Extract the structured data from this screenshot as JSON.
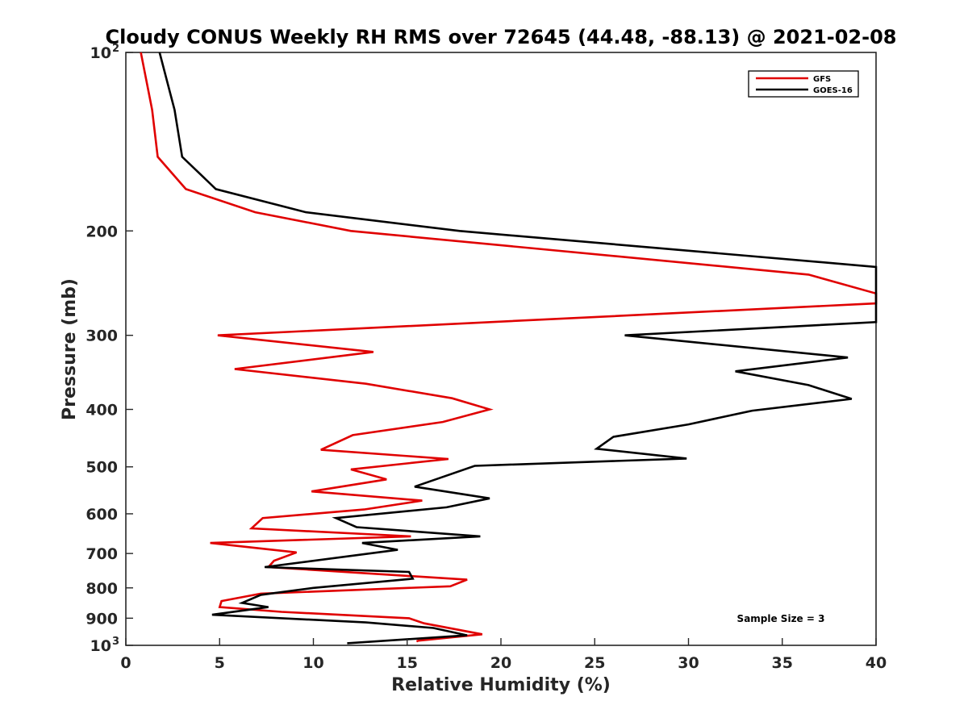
{
  "chart_data": {
    "type": "line",
    "title": "Cloudy CONUS Weekly RH RMS over 72645 (44.48, -88.13) @ 2021-02-08",
    "xlabel": "Relative Humidity (%)",
    "ylabel": "Pressure (mb)",
    "xlim": [
      0,
      40
    ],
    "ylim": [
      100,
      1000
    ],
    "y_scale": "log",
    "y_reversed": true,
    "x_ticks": [
      0,
      5,
      10,
      15,
      20,
      25,
      30,
      35,
      40
    ],
    "y_ticks": [
      {
        "value": 100,
        "label": "10",
        "sup": "2"
      },
      {
        "value": 200,
        "label": "200"
      },
      {
        "value": 300,
        "label": "300"
      },
      {
        "value": 400,
        "label": "400"
      },
      {
        "value": 500,
        "label": "500"
      },
      {
        "value": 600,
        "label": "600"
      },
      {
        "value": 700,
        "label": "700"
      },
      {
        "value": 800,
        "label": "800"
      },
      {
        "value": 900,
        "label": "900"
      },
      {
        "value": 1000,
        "label": "10",
        "sup": "3"
      }
    ],
    "grid": false,
    "legend_position": "top-right",
    "annotation": "Sample Size = 3",
    "series": [
      {
        "name": "GFS",
        "color": "#e00000",
        "points": [
          [
            0.8,
            100
          ],
          [
            1.4,
            125
          ],
          [
            1.7,
            150
          ],
          [
            3.2,
            170
          ],
          [
            6.9,
            186
          ],
          [
            12.0,
            200
          ],
          [
            36.4,
            237
          ],
          [
            40.0,
            255
          ],
          [
            40.0,
            265
          ],
          [
            4.9,
            300
          ],
          [
            13.2,
            320
          ],
          [
            5.8,
            342
          ],
          [
            12.8,
            362
          ],
          [
            17.4,
            383
          ],
          [
            19.4,
            400
          ],
          [
            16.9,
            420
          ],
          [
            12.1,
            442
          ],
          [
            10.4,
            468
          ],
          [
            17.2,
            485
          ],
          [
            12.0,
            505
          ],
          [
            13.9,
            525
          ],
          [
            9.9,
            550
          ],
          [
            15.8,
            570
          ],
          [
            12.7,
            590
          ],
          [
            7.3,
            610
          ],
          [
            6.7,
            635
          ],
          [
            15.2,
            655
          ],
          [
            4.5,
            672
          ],
          [
            9.1,
            697
          ],
          [
            7.9,
            720
          ],
          [
            7.6,
            738
          ],
          [
            18.2,
            775
          ],
          [
            17.3,
            795
          ],
          [
            7.2,
            818
          ],
          [
            5.1,
            842
          ],
          [
            5.0,
            862
          ],
          [
            8.3,
            878
          ],
          [
            15.1,
            900
          ],
          [
            15.9,
            918
          ],
          [
            19.0,
            958
          ],
          [
            15.6,
            982
          ],
          [
            15.5,
            985
          ]
        ]
      },
      {
        "name": "GOES-16",
        "color": "#000000",
        "points": [
          [
            1.8,
            100
          ],
          [
            2.6,
            125
          ],
          [
            3.0,
            150
          ],
          [
            4.8,
            170
          ],
          [
            9.6,
            186
          ],
          [
            17.8,
            200
          ],
          [
            40.0,
            230
          ],
          [
            40.0,
            285
          ],
          [
            26.6,
            300
          ],
          [
            38.5,
            327
          ],
          [
            32.5,
            345
          ],
          [
            36.4,
            364
          ],
          [
            38.7,
            384
          ],
          [
            33.4,
            402
          ],
          [
            30.0,
            424
          ],
          [
            26.0,
            445
          ],
          [
            25.1,
            466
          ],
          [
            29.9,
            484
          ],
          [
            18.6,
            498
          ],
          [
            15.4,
            540
          ],
          [
            19.4,
            565
          ],
          [
            17.1,
            585
          ],
          [
            11.2,
            610
          ],
          [
            12.3,
            632
          ],
          [
            18.9,
            655
          ],
          [
            12.6,
            672
          ],
          [
            14.5,
            690
          ],
          [
            7.4,
            738
          ],
          [
            15.1,
            752
          ],
          [
            15.3,
            772
          ],
          [
            10.0,
            800
          ],
          [
            7.2,
            822
          ],
          [
            6.2,
            848
          ],
          [
            7.6,
            862
          ],
          [
            4.6,
            888
          ],
          [
            12.8,
            915
          ],
          [
            16.4,
            935
          ],
          [
            18.2,
            962
          ],
          [
            11.8,
            992
          ]
        ]
      }
    ]
  }
}
